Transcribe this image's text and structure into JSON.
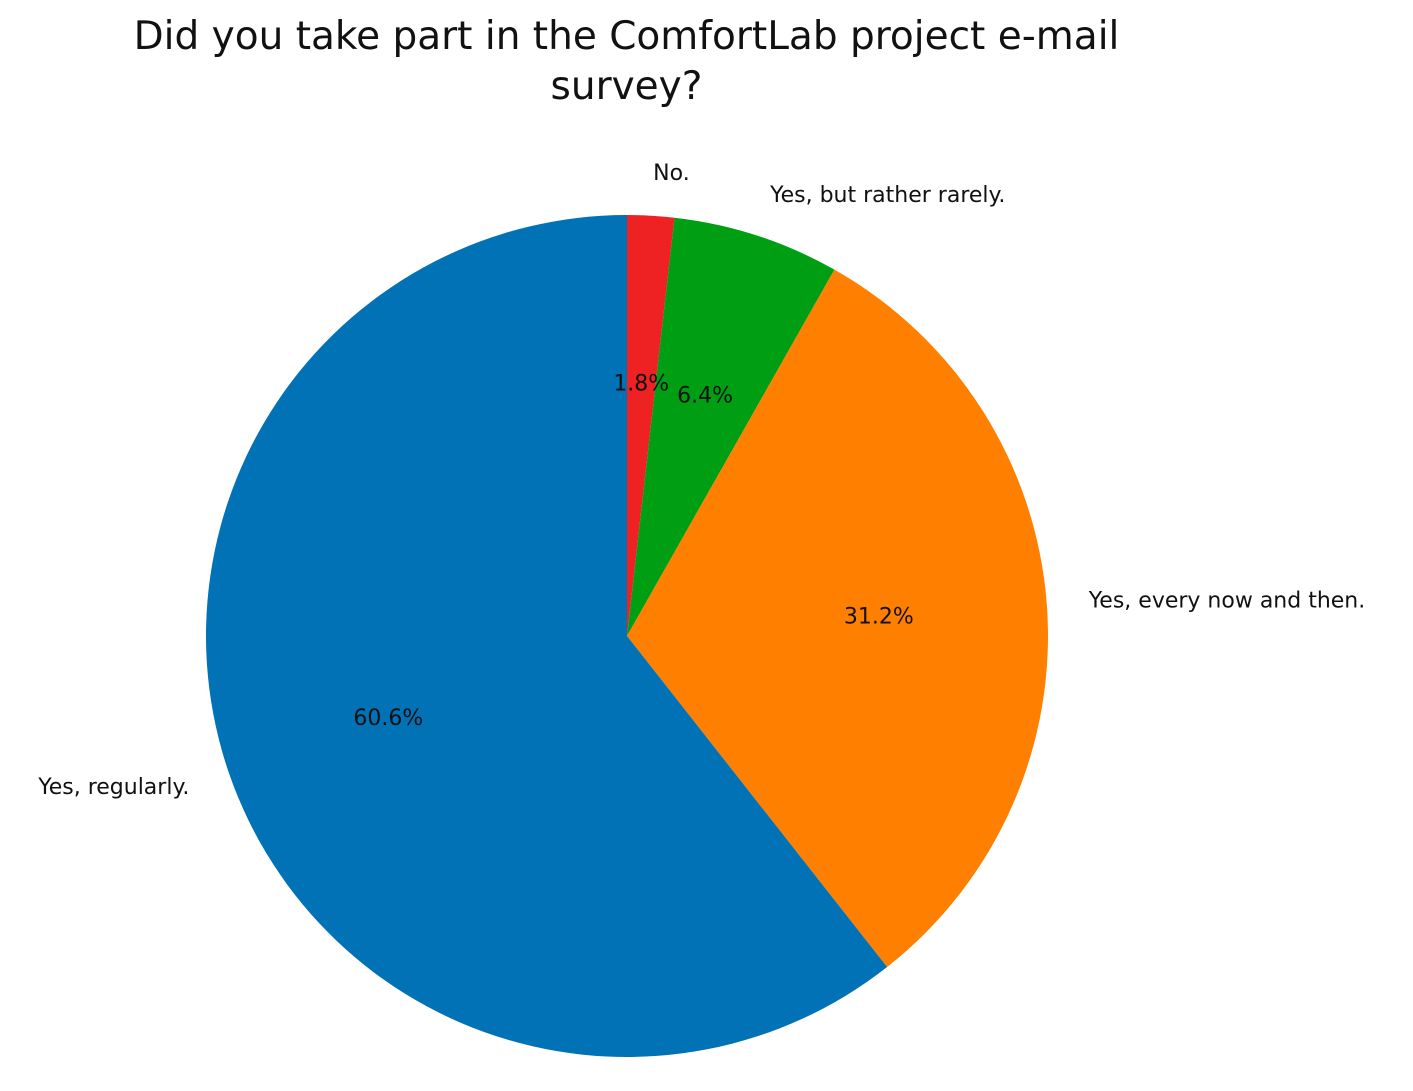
{
  "chart_data": {
    "type": "pie",
    "title_lines": [
      "Did you take part in the ComfortLab project e-mail",
      "survey?"
    ],
    "start_angle_deg": 90,
    "direction": "clockwise",
    "slices": [
      {
        "label": "No.",
        "value": 1.8,
        "pct_text": "1.8%",
        "color": "#ee2222"
      },
      {
        "label": "Yes, but rather rarely.",
        "value": 6.4,
        "pct_text": "6.4%",
        "color": "#009e13"
      },
      {
        "label": "Yes, every now and then.",
        "value": 31.2,
        "pct_text": "31.2%",
        "color": "#ff7f00"
      },
      {
        "label": "Yes, regularly.",
        "value": 60.6,
        "pct_text": "60.6%",
        "color": "#0072b5"
      }
    ]
  }
}
